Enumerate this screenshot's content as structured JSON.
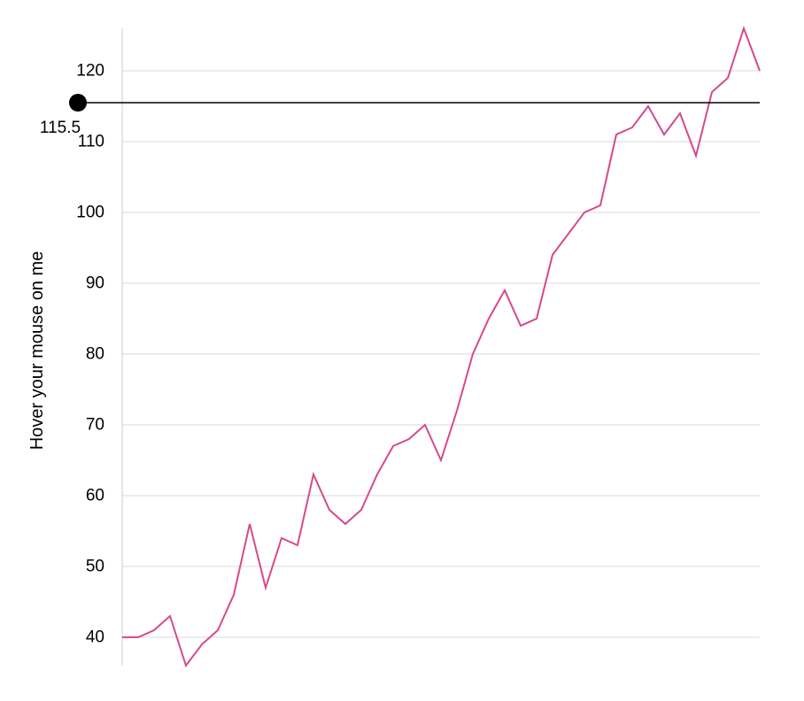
{
  "chart_data": {
    "type": "line",
    "title": "",
    "xlabel": "",
    "ylabel": "Hover your mouse on me",
    "ylim": [
      36,
      126
    ],
    "y_ticks": [
      40,
      50,
      60,
      70,
      80,
      90,
      100,
      110,
      120
    ],
    "grid": "horizontal",
    "x": [
      0,
      1,
      2,
      3,
      4,
      5,
      6,
      7,
      8,
      9,
      10,
      11,
      12,
      13,
      14,
      15,
      16,
      17,
      18,
      19,
      20,
      21,
      22,
      23,
      24,
      25,
      26,
      27,
      28,
      29,
      30,
      31,
      32,
      33,
      34,
      35,
      36,
      37,
      38,
      39,
      40
    ],
    "series": [
      {
        "color": "#d6498c",
        "values": [
          40,
          40,
          41,
          43,
          36,
          39,
          41,
          46,
          56,
          47,
          54,
          53,
          63,
          58,
          56,
          58,
          63,
          67,
          68,
          70,
          65,
          72,
          80,
          85,
          89,
          84,
          85,
          94,
          97,
          100,
          101,
          111,
          112,
          115,
          111,
          114,
          108,
          117,
          119,
          126,
          120
        ]
      }
    ],
    "crosshair": {
      "value": 115.5,
      "label": "115.5",
      "line_color": "#000000",
      "marker_color": "#000000"
    },
    "colors": {
      "grid": "#d9d9d9",
      "axis": "#cccccc",
      "text": "#000000"
    }
  }
}
